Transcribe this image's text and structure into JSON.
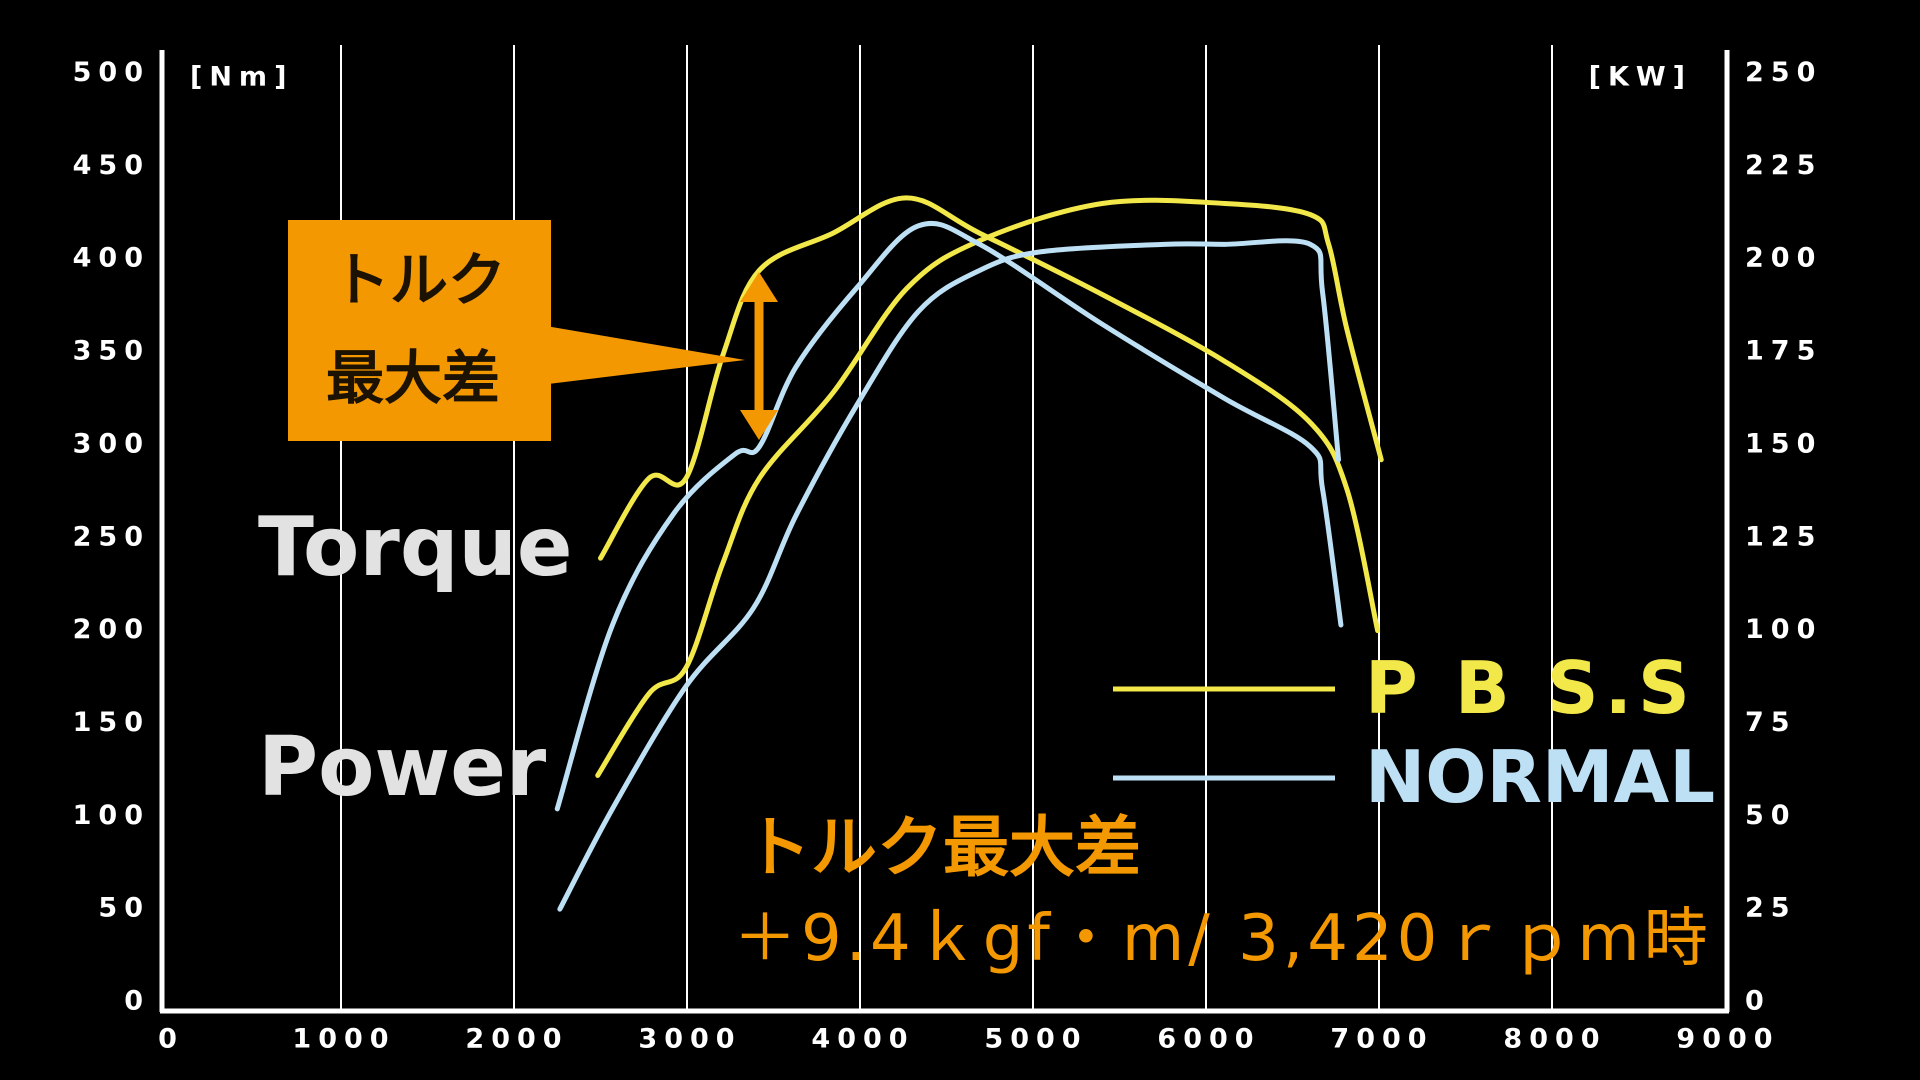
{
  "chart_data": {
    "type": "line",
    "ylabel": "[Nm]",
    "y2label": "[KW]",
    "xlim": [
      0,
      9000
    ],
    "xticks": [
      0,
      1000,
      2000,
      3000,
      4000,
      5000,
      6000,
      7000,
      8000,
      9000
    ],
    "ylim": [
      0,
      500
    ],
    "yticks": [
      0,
      50,
      100,
      150,
      200,
      250,
      300,
      350,
      400,
      450,
      500
    ],
    "y2lim": [
      0,
      250
    ],
    "y2ticks": [
      0,
      25,
      50,
      75,
      100,
      125,
      150,
      175,
      200,
      225,
      250
    ],
    "grid": "x",
    "series": [
      {
        "name": "P B S.S",
        "color": "#f2e84a",
        "torque": {
          "x": [
            2500,
            2780,
            2994,
            3206,
            3418,
            3843,
            4268,
            4692,
            5400,
            6108,
            6603,
            6815,
            6992
          ],
          "values": [
            239,
            282,
            282,
            348,
            394,
            414,
            433,
            414,
            381,
            345,
            312,
            276,
            200
          ]
        },
        "power": {
          "axis": "y2",
          "x": [
            2484,
            2780,
            2994,
            3206,
            3418,
            3843,
            4268,
            4692,
            5400,
            6108,
            6603,
            6709,
            6815,
            7013
          ],
          "values": [
            61,
            83,
            90,
            118,
            141,
            164,
            192,
            205,
            215,
            215,
            212,
            204,
            181,
            146
          ]
        }
      },
      {
        "name": "NORMAL",
        "color": "#bde0f5",
        "torque": {
          "x": [
            2250,
            2569,
            2923,
            3277,
            3418,
            3630,
            3985,
            4339,
            4692,
            5400,
            6108,
            6603,
            6674,
            6780
          ],
          "values": [
            104,
            203,
            263,
            295,
            299,
            342,
            385,
            418,
            408,
            365,
            325,
            299,
            276,
            203
          ]
        },
        "power": {
          "axis": "y2",
          "x": [
            2265,
            2569,
            2994,
            3383,
            3630,
            3985,
            4339,
            4692,
            5046,
            5754,
            6108,
            6603,
            6674,
            6766
          ],
          "values": [
            25,
            52,
            85,
            106,
            131,
            161,
            186,
            197,
            202,
            204,
            204,
            204,
            191,
            146
          ]
        }
      }
    ],
    "annotations": {
      "torque_label": "Torque",
      "power_label": "Power",
      "box_text": [
        "トルク",
        "最大差"
      ],
      "note": [
        "トルク最大差",
        "＋9.4ｋgf・m/ 3,420ｒｐm時"
      ]
    }
  }
}
